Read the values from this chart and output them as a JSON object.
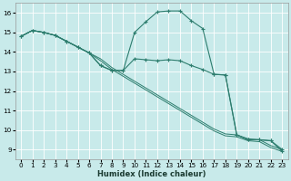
{
  "xlabel": "Humidex (Indice chaleur)",
  "bg_color": "#c8eaea",
  "grid_color": "#b8d8d8",
  "line_color": "#2d7d6e",
  "xlim": [
    -0.5,
    23.5
  ],
  "ylim": [
    8.5,
    16.5
  ],
  "xticks": [
    0,
    1,
    2,
    3,
    4,
    5,
    6,
    7,
    8,
    9,
    10,
    11,
    12,
    13,
    14,
    15,
    16,
    17,
    18,
    19,
    20,
    21,
    22,
    23
  ],
  "yticks": [
    9,
    10,
    11,
    12,
    13,
    14,
    15,
    16
  ],
  "line_nomarker_1": {
    "x": [
      0,
      1,
      2,
      3,
      4,
      5,
      6,
      7,
      8,
      9,
      10,
      11,
      12,
      13,
      14,
      15,
      16,
      17,
      18,
      19,
      20,
      21,
      22,
      23
    ],
    "y": [
      14.8,
      15.1,
      15.0,
      14.85,
      14.55,
      14.25,
      13.95,
      13.55,
      13.1,
      12.75,
      12.4,
      12.05,
      11.7,
      11.35,
      11.0,
      10.65,
      10.3,
      9.95,
      9.7,
      9.65,
      9.45,
      9.4,
      9.1,
      8.9
    ]
  },
  "line_nomarker_2": {
    "x": [
      0,
      1,
      2,
      3,
      4,
      5,
      6,
      7,
      8,
      9,
      10,
      11,
      12,
      13,
      14,
      15,
      16,
      17,
      18,
      19,
      20,
      21,
      22,
      23
    ],
    "y": [
      14.8,
      15.1,
      15.0,
      14.85,
      14.55,
      14.25,
      13.95,
      13.65,
      13.2,
      12.85,
      12.5,
      12.15,
      11.8,
      11.45,
      11.1,
      10.75,
      10.4,
      10.05,
      9.8,
      9.75,
      9.55,
      9.5,
      9.2,
      9.0
    ]
  },
  "line_marker_flat": {
    "x": [
      0,
      1,
      2,
      3,
      4,
      5,
      6,
      7,
      8,
      9,
      10,
      11,
      12,
      13,
      14,
      15,
      16,
      17,
      18,
      19,
      20,
      21,
      22,
      23
    ],
    "y": [
      14.8,
      15.1,
      15.0,
      14.85,
      14.55,
      14.25,
      13.95,
      13.3,
      13.05,
      13.05,
      13.65,
      13.6,
      13.55,
      13.6,
      13.55,
      13.3,
      13.1,
      12.85,
      12.82,
      9.75,
      9.5,
      9.5,
      9.45,
      9.0
    ]
  },
  "line_marker_peak": {
    "x": [
      0,
      1,
      2,
      3,
      4,
      5,
      6,
      7,
      8,
      9,
      10,
      11,
      12,
      13,
      14,
      15,
      16,
      17,
      18,
      19,
      20,
      21,
      22,
      23
    ],
    "y": [
      14.8,
      15.1,
      15.0,
      14.85,
      14.55,
      14.25,
      13.95,
      13.3,
      13.05,
      13.05,
      15.0,
      15.55,
      16.05,
      16.1,
      16.1,
      15.6,
      15.2,
      12.85,
      12.82,
      9.75,
      9.5,
      9.5,
      9.45,
      8.9
    ]
  }
}
